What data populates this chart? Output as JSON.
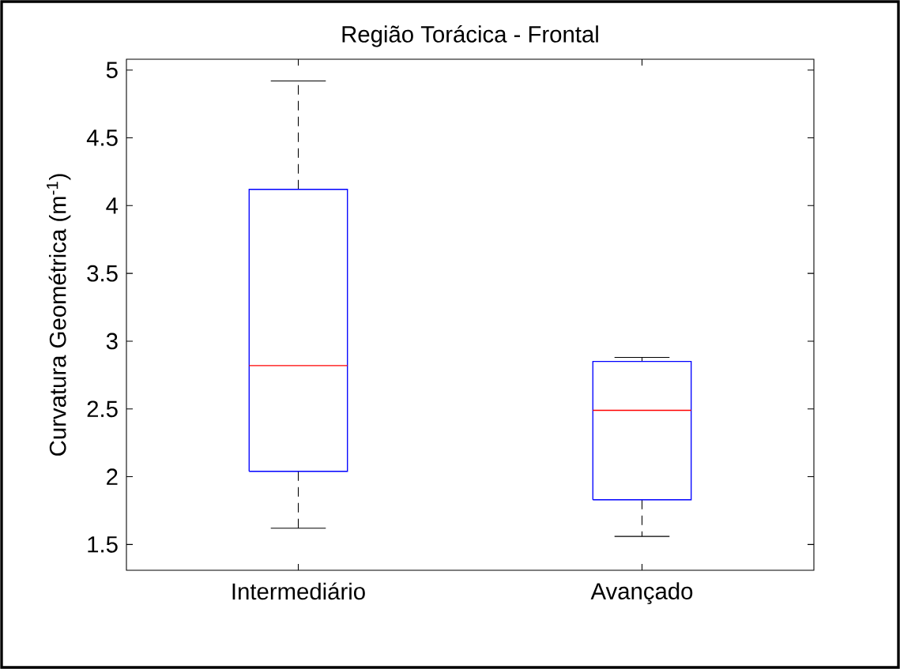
{
  "chart_data": {
    "type": "box",
    "title": "Região Torácica - Frontal",
    "ylabel": "Curvatura Geométrica (m$^{-1}$)",
    "categories": [
      "Intermediário",
      "Avançado"
    ],
    "boxes": [
      {
        "low": 1.62,
        "q1": 2.04,
        "median": 2.82,
        "q3": 4.12,
        "high": 4.92
      },
      {
        "low": 1.56,
        "q1": 1.83,
        "median": 2.49,
        "q3": 2.85,
        "high": 2.88
      }
    ],
    "ylim": [
      1.31,
      5.08
    ],
    "yticks": [
      1.5,
      2,
      2.5,
      3,
      3.5,
      4,
      4.5,
      5
    ],
    "grid": false
  }
}
